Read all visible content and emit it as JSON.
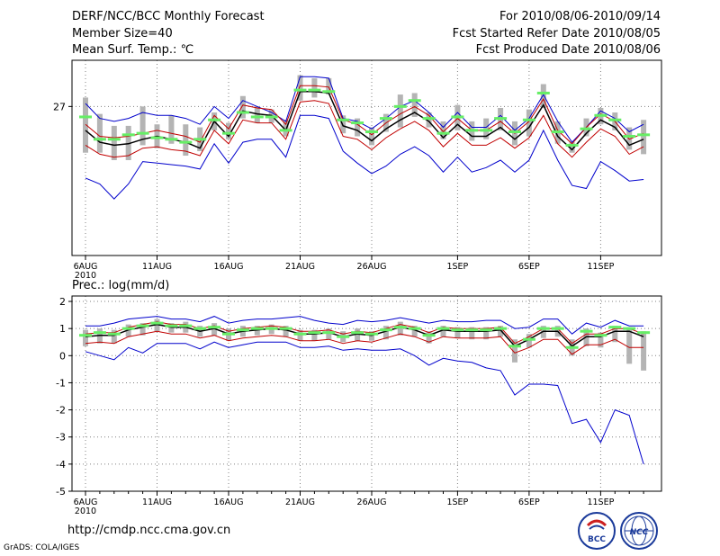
{
  "header": {
    "title": "DERF/NCC/BCC Monthly Forecast",
    "member_size": "Member Size=40",
    "variable_top": "Mean Surf. Temp.: ℃",
    "forecast_period": "For 2010/08/06-2010/09/14",
    "started_date": "Fcst Started Refer Date 2010/08/05",
    "produced_date": "Fcst Produced Date 2010/08/06"
  },
  "footer": {
    "url": "http://cmdp.ncc.cma.gov.cn",
    "credit": "GrADS: COLA/IGES",
    "logo_bcc": "BCC",
    "logo_ncc": "NCC"
  },
  "colors": {
    "ensemble_mean": "#000000",
    "spread_inner": "#c00000",
    "spread_outer": "#0000cc",
    "member_box": "#b4b4b4",
    "observed_marker": "#66ee66",
    "grid": "#808080"
  },
  "chart_data": [
    {
      "type": "line",
      "title": "Mean Surf. Temp.: ℃",
      "x_tick_labels": [
        "6AUG",
        "11AUG",
        "16AUG",
        "21AUG",
        "26AUG",
        "1SEP",
        "6SEP",
        "11SEP"
      ],
      "x_year_label": "2010",
      "y_tick_labels": [
        "27"
      ],
      "y_ticks": [
        27
      ],
      "ylim": [
        22.0,
        28.55
      ],
      "days": 40,
      "series": [
        {
          "name": "ensemble-mean",
          "values": [
            26.2,
            25.8,
            25.7,
            25.75,
            25.9,
            26.0,
            25.9,
            25.8,
            25.6,
            26.5,
            26.0,
            26.85,
            26.75,
            26.7,
            26.2,
            27.5,
            27.5,
            27.45,
            26.35,
            26.2,
            25.85,
            26.25,
            26.55,
            26.8,
            26.5,
            25.95,
            26.4,
            26.0,
            26.0,
            26.3,
            25.9,
            26.3,
            27.05,
            26.0,
            25.55,
            26.1,
            26.55,
            26.3,
            25.7,
            25.9
          ]
        },
        {
          "name": "upper-inner",
          "values": [
            26.4,
            26.0,
            25.95,
            26.0,
            26.1,
            26.2,
            26.1,
            26.0,
            25.8,
            26.7,
            26.25,
            27.05,
            26.95,
            26.9,
            26.4,
            27.7,
            27.7,
            27.65,
            26.55,
            26.4,
            26.05,
            26.45,
            26.75,
            27.0,
            26.7,
            26.15,
            26.6,
            26.2,
            26.2,
            26.5,
            26.1,
            26.5,
            27.25,
            26.2,
            25.75,
            26.3,
            26.75,
            26.5,
            25.9,
            26.1
          ]
        },
        {
          "name": "lower-inner",
          "values": [
            25.7,
            25.4,
            25.3,
            25.35,
            25.6,
            25.65,
            25.55,
            25.5,
            25.35,
            26.2,
            25.75,
            26.55,
            26.45,
            26.45,
            25.9,
            27.15,
            27.2,
            27.1,
            26.0,
            25.9,
            25.55,
            25.95,
            26.25,
            26.5,
            26.2,
            25.65,
            26.1,
            25.7,
            25.7,
            25.95,
            25.6,
            25.95,
            26.7,
            25.75,
            25.3,
            25.8,
            26.25,
            26.0,
            25.4,
            25.65
          ]
        },
        {
          "name": "upper-outer",
          "values": [
            27.1,
            26.6,
            26.5,
            26.6,
            26.8,
            26.7,
            26.7,
            26.6,
            26.4,
            27.0,
            26.6,
            27.2,
            27.0,
            26.8,
            26.5,
            28.0,
            28.0,
            27.95,
            26.6,
            26.5,
            26.25,
            26.6,
            27.0,
            27.2,
            26.8,
            26.3,
            26.8,
            26.3,
            26.3,
            26.7,
            26.2,
            26.6,
            27.4,
            26.5,
            25.8,
            26.3,
            26.85,
            26.6,
            26.15,
            26.4
          ]
        },
        {
          "name": "lower-outer",
          "values": [
            24.6,
            24.4,
            23.9,
            24.4,
            25.15,
            25.1,
            25.05,
            25.0,
            24.9,
            25.75,
            25.1,
            25.8,
            25.9,
            25.9,
            25.3,
            26.7,
            26.7,
            26.6,
            25.5,
            25.1,
            24.75,
            25.0,
            25.4,
            25.65,
            25.35,
            24.8,
            25.3,
            24.8,
            24.95,
            25.2,
            24.8,
            25.2,
            26.2,
            25.2,
            24.35,
            24.25,
            25.15,
            24.85,
            24.5,
            24.55
          ]
        },
        {
          "name": "box-high",
          "values": [
            27.3,
            26.75,
            26.35,
            26.35,
            27.0,
            26.4,
            26.7,
            26.4,
            26.3,
            26.8,
            26.45,
            27.35,
            27.0,
            26.9,
            26.55,
            28.05,
            27.95,
            27.95,
            26.7,
            26.6,
            26.3,
            26.75,
            27.4,
            27.45,
            26.8,
            26.5,
            27.05,
            26.5,
            26.6,
            26.95,
            26.5,
            26.9,
            27.75,
            26.5,
            25.8,
            26.6,
            26.95,
            26.8,
            26.3,
            26.55
          ]
        },
        {
          "name": "box-low",
          "values": [
            25.45,
            25.45,
            25.2,
            25.2,
            25.7,
            25.6,
            25.75,
            25.35,
            25.5,
            26.2,
            25.9,
            26.6,
            26.45,
            26.45,
            26.0,
            27.2,
            27.3,
            27.4,
            26.1,
            26.0,
            25.7,
            26.15,
            26.3,
            26.65,
            26.3,
            25.9,
            26.2,
            25.85,
            25.9,
            26.2,
            25.7,
            26.0,
            26.95,
            25.75,
            25.45,
            26.0,
            26.4,
            26.2,
            25.55,
            25.4
          ]
        },
        {
          "name": "observed",
          "values": [
            26.65,
            25.9,
            25.9,
            26.05,
            26.1,
            25.95,
            25.9,
            25.8,
            25.9,
            26.55,
            26.1,
            26.8,
            26.65,
            26.65,
            26.2,
            27.55,
            27.55,
            27.5,
            26.55,
            26.45,
            26.15,
            26.6,
            27.0,
            27.2,
            26.6,
            26.1,
            26.65,
            26.2,
            26.2,
            26.6,
            26.15,
            26.55,
            27.45,
            26.15,
            25.7,
            26.25,
            26.7,
            26.55,
            26.0,
            26.05
          ]
        }
      ]
    },
    {
      "type": "line",
      "title": "Prec.: log(mm/d)",
      "x_tick_labels": [
        "6AUG",
        "11AUG",
        "16AUG",
        "21AUG",
        "26AUG",
        "1SEP",
        "6SEP",
        "11SEP"
      ],
      "x_year_label": "2010",
      "y_tick_labels": [
        "2",
        "1",
        "0",
        "-1",
        "-2",
        "-3",
        "-4",
        "-5"
      ],
      "y_ticks": [
        2,
        1,
        0,
        -1,
        -2,
        -3,
        -4,
        -5
      ],
      "ylim": [
        -5,
        2.2
      ],
      "days": 40,
      "series": [
        {
          "name": "ensemble-mean",
          "values": [
            0.7,
            0.75,
            0.75,
            0.95,
            1.05,
            1.15,
            1.05,
            1.05,
            0.9,
            1.0,
            0.8,
            0.9,
            0.95,
            1.0,
            0.95,
            0.8,
            0.8,
            0.85,
            0.7,
            0.8,
            0.75,
            0.9,
            1.05,
            0.95,
            0.75,
            0.95,
            0.9,
            0.9,
            0.9,
            0.95,
            0.35,
            0.6,
            0.9,
            0.9,
            0.35,
            0.7,
            0.7,
            0.9,
            0.9,
            0.7
          ]
        },
        {
          "name": "upper-inner",
          "values": [
            0.8,
            0.85,
            0.85,
            1.05,
            1.15,
            1.25,
            1.15,
            1.15,
            1.0,
            1.1,
            0.9,
            1.0,
            1.05,
            1.1,
            1.05,
            0.9,
            0.9,
            0.95,
            0.8,
            0.9,
            0.85,
            1.0,
            1.15,
            1.05,
            0.85,
            1.05,
            1.0,
            1.0,
            1.0,
            1.05,
            0.45,
            0.7,
            1.0,
            1.0,
            0.45,
            0.8,
            0.8,
            1.0,
            1.0,
            0.8
          ]
        },
        {
          "name": "lower-inner",
          "values": [
            0.45,
            0.5,
            0.45,
            0.7,
            0.8,
            0.9,
            0.8,
            0.8,
            0.65,
            0.75,
            0.55,
            0.65,
            0.7,
            0.75,
            0.7,
            0.55,
            0.55,
            0.6,
            0.45,
            0.55,
            0.5,
            0.65,
            0.8,
            0.7,
            0.5,
            0.7,
            0.65,
            0.65,
            0.65,
            0.7,
            0.1,
            0.3,
            0.6,
            0.6,
            0.05,
            0.4,
            0.4,
            0.6,
            0.3,
            0.3
          ]
        },
        {
          "name": "upper-outer",
          "values": [
            1.1,
            1.1,
            1.2,
            1.35,
            1.4,
            1.45,
            1.35,
            1.35,
            1.25,
            1.45,
            1.2,
            1.3,
            1.35,
            1.35,
            1.4,
            1.45,
            1.3,
            1.2,
            1.15,
            1.3,
            1.25,
            1.3,
            1.4,
            1.3,
            1.2,
            1.3,
            1.25,
            1.25,
            1.3,
            1.3,
            1.0,
            1.05,
            1.35,
            1.35,
            0.8,
            1.2,
            1.05,
            1.3,
            1.1,
            1.1
          ]
        },
        {
          "name": "lower-outer",
          "values": [
            0.15,
            0.0,
            -0.15,
            0.3,
            0.1,
            0.45,
            0.45,
            0.45,
            0.25,
            0.5,
            0.3,
            0.4,
            0.5,
            0.5,
            0.5,
            0.3,
            0.3,
            0.35,
            0.2,
            0.25,
            0.2,
            0.2,
            0.25,
            0.0,
            -0.35,
            -0.1,
            -0.2,
            -0.25,
            -0.45,
            -0.55,
            -1.45,
            -1.05,
            -1.05,
            -1.1,
            -2.5,
            -2.35,
            -3.2,
            -2.0,
            -2.2,
            -4.0
          ]
        },
        {
          "name": "box-high",
          "values": [
            0.95,
            1.0,
            0.95,
            1.15,
            1.2,
            1.35,
            1.2,
            1.25,
            1.1,
            1.2,
            1.0,
            1.1,
            1.1,
            1.15,
            1.1,
            0.95,
            0.95,
            1.0,
            0.9,
            1.0,
            0.9,
            1.1,
            1.25,
            1.1,
            0.9,
            1.1,
            1.05,
            1.05,
            1.05,
            1.1,
            0.6,
            0.8,
            1.1,
            1.1,
            0.6,
            1.0,
            0.85,
            1.1,
            1.05,
            0.9
          ]
        },
        {
          "name": "box-low",
          "values": [
            0.35,
            0.45,
            0.45,
            0.7,
            0.75,
            0.9,
            0.85,
            0.85,
            0.7,
            0.75,
            0.55,
            0.7,
            0.75,
            0.8,
            0.7,
            0.55,
            0.55,
            0.6,
            0.5,
            0.55,
            0.55,
            0.6,
            0.75,
            0.7,
            0.45,
            0.7,
            0.65,
            0.6,
            0.6,
            0.7,
            -0.25,
            0.3,
            0.65,
            0.7,
            0.0,
            0.35,
            0.3,
            0.5,
            -0.3,
            -0.55
          ]
        },
        {
          "name": "observed",
          "values": [
            0.75,
            0.85,
            0.8,
            1.0,
            1.1,
            1.2,
            1.1,
            1.1,
            1.0,
            1.05,
            0.8,
            0.95,
            1.0,
            1.0,
            1.0,
            0.8,
            0.85,
            0.85,
            0.7,
            0.85,
            0.8,
            0.95,
            1.05,
            1.0,
            0.75,
            1.0,
            0.95,
            0.95,
            0.95,
            1.0,
            0.35,
            0.6,
            1.0,
            1.0,
            0.3,
            0.9,
            0.75,
            1.05,
            1.0,
            0.85
          ]
        }
      ]
    }
  ]
}
